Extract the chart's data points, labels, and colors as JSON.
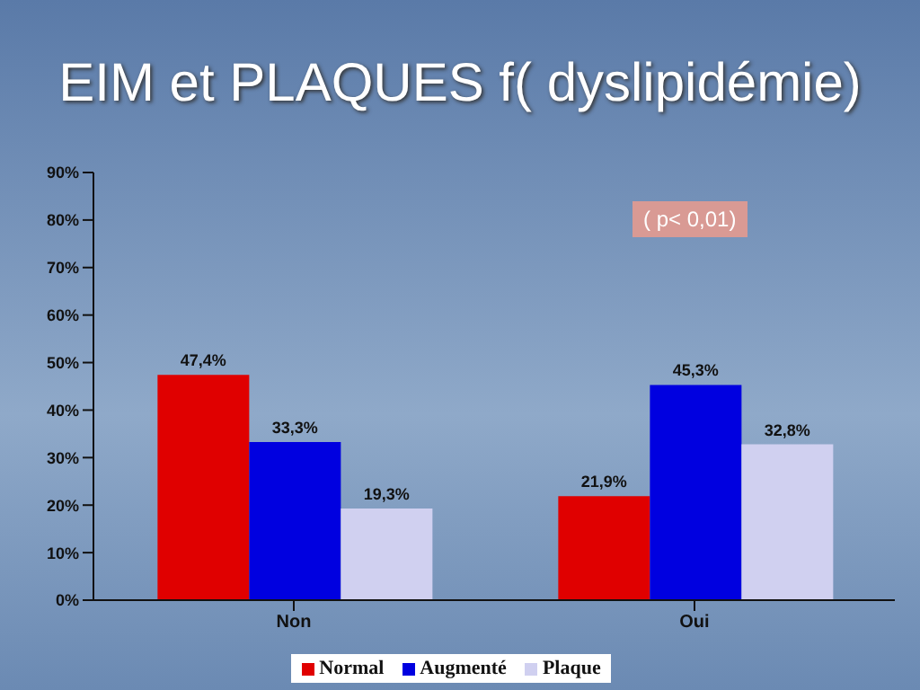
{
  "chart_data": {
    "type": "bar",
    "title": "EIM et PLAQUES f( dyslipidémie)",
    "categories": [
      "Non",
      "Oui"
    ],
    "series": [
      {
        "name": "Normal",
        "color": "#e00000",
        "values": [
          47.4,
          21.9
        ],
        "value_labels": [
          "47,4%",
          "21,9%"
        ]
      },
      {
        "name": "Augmenté",
        "color": "#0000e0",
        "values": [
          33.3,
          45.3
        ],
        "value_labels": [
          "33,3%",
          "45,3%"
        ]
      },
      {
        "name": "Plaque",
        "color": "#d0d0f0",
        "values": [
          19.3,
          32.8
        ],
        "value_labels": [
          "19,3%",
          "32,8%"
        ]
      }
    ],
    "ylim": [
      0,
      90
    ],
    "yticks": [
      {
        "value": 0,
        "label": "0%"
      },
      {
        "value": 10,
        "label": "10%"
      },
      {
        "value": 20,
        "label": "20%"
      },
      {
        "value": 30,
        "label": "30%"
      },
      {
        "value": 40,
        "label": "40%"
      },
      {
        "value": 50,
        "label": "50%"
      },
      {
        "value": 60,
        "label": "60%"
      },
      {
        "value": 70,
        "label": "70%"
      },
      {
        "value": 80,
        "label": "80%"
      },
      {
        "value": 90,
        "label": "90%"
      }
    ],
    "annotations": [
      "( p< 0,01)"
    ],
    "legend": "bottom",
    "grid": false
  }
}
